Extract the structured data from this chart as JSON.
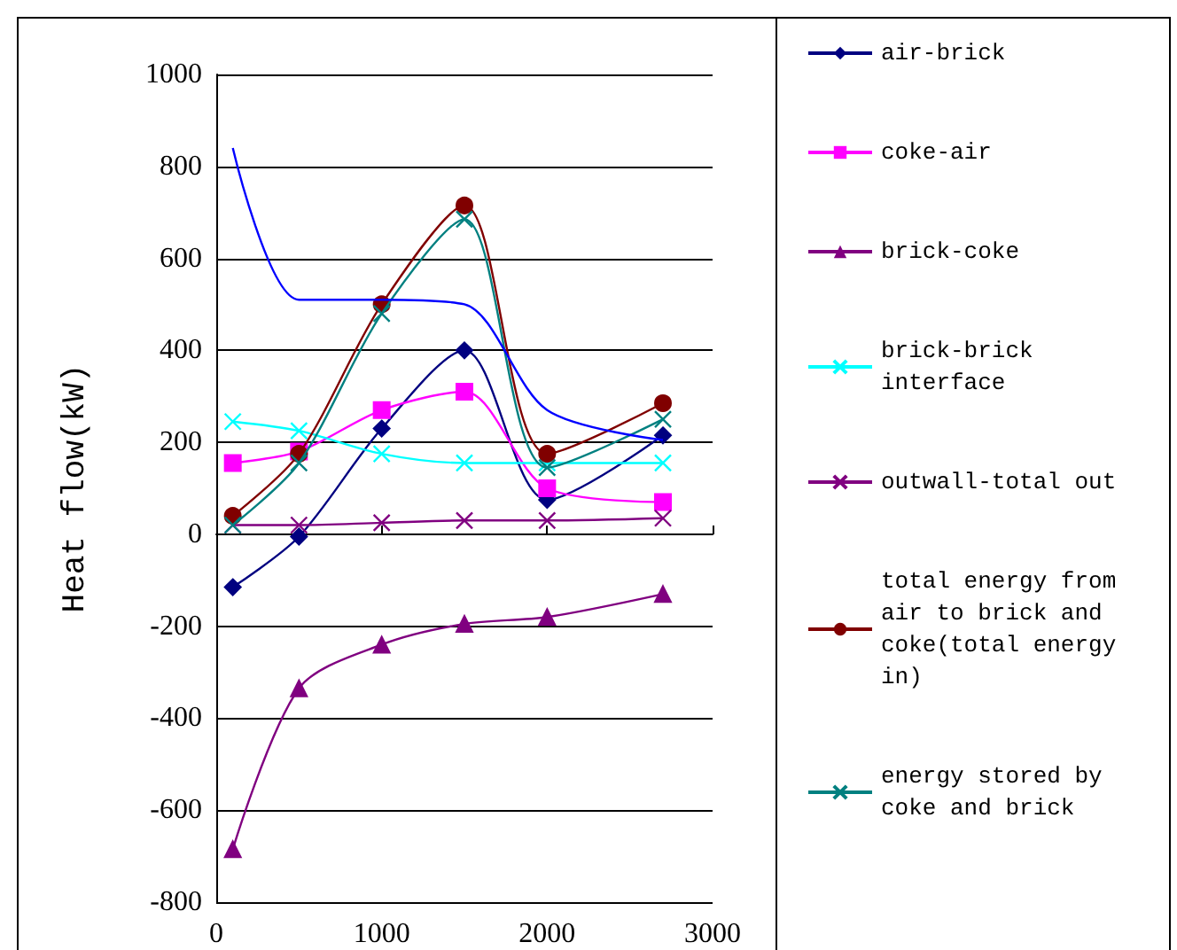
{
  "chart_data": {
    "type": "line",
    "ylabel": "Heat flow(kW)",
    "x": [
      100,
      500,
      1000,
      1500,
      2000,
      2700
    ],
    "xlim": [
      0,
      3000
    ],
    "xticks": [
      0,
      1000,
      2000,
      3000
    ],
    "ylim": [
      -800,
      1000
    ],
    "yticks": [
      -800,
      -600,
      -400,
      -200,
      0,
      200,
      400,
      600,
      800,
      1000
    ],
    "grid": "y",
    "legend": "right",
    "series": [
      {
        "name": "air-brick",
        "color": "#000080",
        "marker": "diamond",
        "values": [
          -115,
          -5,
          230,
          400,
          75,
          215
        ]
      },
      {
        "name": "coke-air",
        "color": "#ff00ff",
        "marker": "square",
        "values": [
          155,
          180,
          270,
          310,
          100,
          70
        ]
      },
      {
        "name": "brick-coke",
        "color": "#800080",
        "marker": "triangle",
        "values": [
          -685,
          -335,
          -240,
          -195,
          -180,
          -130
        ]
      },
      {
        "name": "brick-brick interface",
        "color": "#00ffff",
        "marker": "cross",
        "values": [
          245,
          225,
          175,
          155,
          155,
          155
        ]
      },
      {
        "name": "outwall-total out",
        "color": "#800080",
        "marker": "cross",
        "values": [
          20,
          20,
          25,
          30,
          30,
          35
        ]
      },
      {
        "name": "total energy from air to brick and coke(total energy in)",
        "color": "#800000",
        "marker": "circle",
        "values": [
          40,
          175,
          500,
          715,
          175,
          285
        ]
      },
      {
        "name": "energy stored by coke and brick",
        "color": "#008080",
        "marker": "cross",
        "values": [
          20,
          155,
          480,
          685,
          145,
          250
        ]
      },
      {
        "color": "#0000ff",
        "marker": "none",
        "values": [
          840,
          510,
          510,
          500,
          270,
          205
        ]
      }
    ]
  }
}
